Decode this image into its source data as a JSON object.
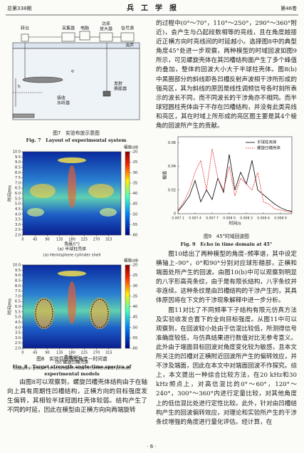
{
  "header": {
    "issue": "总第338期",
    "journal": "兵　工　学　报",
    "volume": "第46卷"
  },
  "figure7": {
    "labels": {
      "turntable": "转台",
      "collector": "采集器",
      "computer": "电脑",
      "amplifier": [
        "功率",
        "放大器"
      ],
      "source": "信号源",
      "pool": "消声",
      "receiver": [
        "接收",
        "水听器"
      ],
      "transmitter": [
        "发射",
        "换能器"
      ],
      "angle": "α",
      "depth": "h"
    },
    "caption_cn": "图7　实验布放示意图",
    "caption_en": "Fig. 7　Layout of experimental system"
  },
  "figure8": {
    "ylabel": "时间/ms",
    "xlabel": "角度/(°)",
    "cbar_label": "幅值/dB",
    "xlim": [
      0,
      360
    ],
    "xticks": [
      0,
      45,
      90,
      135,
      180,
      225,
      270,
      315
    ],
    "ylim": [
      2,
      10
    ],
    "yticks": [
      {
        "value": 2,
        "label": "2.0"
      },
      2.5,
      {
        "value": 3,
        "label": "3.0"
      },
      3.5,
      {
        "value": 4,
        "label": "4.0"
      },
      4.5,
      {
        "value": 5,
        "label": "5.0"
      },
      5.5,
      {
        "value": 6,
        "label": "6.0"
      },
      6.5,
      {
        "value": 7,
        "label": "7.0"
      },
      7.5,
      {
        "value": 8,
        "label": "8.0"
      },
      8.5,
      {
        "value": 9,
        "label": "9.0"
      },
      9.5,
      {
        "value": 10,
        "label": "10.0"
      }
    ],
    "clim": [
      -20,
      -60
    ],
    "cticks": [
      -20,
      -25,
      -30,
      -35,
      -40,
      -45,
      -50,
      -55,
      -60
    ],
    "panels": [
      {
        "caption_cn": "(a) 半球柱壳体",
        "caption_en": "(a) Hemisphere cylinder shell"
      },
      {
        "caption_cn": "(b) 螺旋凹槽壳体",
        "caption_en": "(b) Spiral groove structure with four circumferential periods"
      }
    ],
    "caption_cn": "图8　实验目标强度角度—时间谱",
    "caption_en": [
      "Fig. 8　Target strength angle-time spectra of",
      "experimental models"
    ]
  },
  "figure9": {
    "type": "line",
    "ylabel": "幅值",
    "xlabel": "时间/s",
    "x": [
      0.0071,
      0.0072,
      0.0073,
      0.0074,
      0.0075,
      0.0076,
      0.0077,
      0.0078,
      0.0079,
      0.008,
      0.0081,
      0.0082,
      0.0083,
      0.0084,
      0.0085,
      0.0086,
      0.0087,
      0.0088,
      0.0089,
      0.009,
      0.0091
    ],
    "series": [
      {
        "name": "半球柱壳体",
        "color": "#000000",
        "values": [
          0.002,
          0.008,
          0.015,
          0.028,
          0.01,
          0.02,
          0.012,
          0.03,
          0.018,
          0.05,
          0.02,
          0.035,
          0.025,
          0.045,
          0.02,
          0.016,
          0.012,
          0.008,
          0.005,
          0.003,
          0.002
        ]
      },
      {
        "name": "螺旋凹槽壳体",
        "color": "#e0302a",
        "values": [
          0.003,
          0.01,
          0.02,
          0.035,
          0.045,
          0.02,
          0.055,
          0.03,
          0.02,
          0.04,
          0.015,
          0.03,
          0.025,
          0.02,
          0.035,
          0.01,
          0.008,
          0.004,
          0.003,
          0.002,
          0.001
        ]
      }
    ],
    "xlim": [
      0.0071,
      0.0091
    ],
    "xticks": [
      {
        "value": 0.0071,
        "label": "0.007 1"
      },
      {
        "value": 0.0074,
        "label": "0.007 4"
      },
      {
        "value": 0.0077,
        "label": "0.007 7"
      },
      {
        "value": 0.008,
        "label": "0.008 0"
      },
      {
        "value": 0.0083,
        "label": "0.008 3"
      },
      {
        "value": 0.0086,
        "label": "0.008 6"
      },
      {
        "value": 0.0089,
        "label": "0.008 9"
      }
    ],
    "ylim": [
      0,
      0.065
    ],
    "yticks": [
      0,
      0.02,
      0.04,
      0.06
    ],
    "caption_cn": "图9　45°时域回波图",
    "caption_en": "Fig. 9　Echo in time domain at 45°"
  },
  "body": {
    "left": "由图8可以观察到，螺旋凹槽壳体结构由于在轴向上具有周期性凹槽结构，正横方向的目标强度发生偏转，其相较半球冠圆柱壳体较弱。结构产生了不同的时延，因此在模型由正横方向向两端旋转",
    "right": [
      "的过程中(0°～70°，110°～250°，290°～360°附近)，会产生与凸起段数相等的亮线，且在角度越接近正横方向时亮线间的时延越小。选择图8中的典型角度45°处进一步观察，两种模型的时域回波如图9所示，可见螺旋壳体在其凹槽结构面产生了多个峰值的叠加，整体的回波大小大于半球柱壳体。图8(b)中黑圈部分的斜线即各凹槽反射声波相干涉所形成的强亮区，其为斜线的原因是线性调频信号各时刻所表示的波长不同，而不同波长的干涉角亦不相同。而半球冠圆柱壳体由于不存在凹槽结构，并没有此类亮线和亮区，其在时域上所形成的亮区图主要是其4个棱角的回波所产生的贡献。",
      "图10给出了两种模型的角度–频率谱，其中设定横轴上–90°，0°和90°分别对应球形艏部，正横和端面处所产生的回波。由图10(b)中可以观察到明显的八字形高亮条纹，由于是有限长结构，八字条纹并非连续。这种条纹是由凹槽结构的干涉产生的，其具体原因将在下文的干涉现象解释中进一步分析。",
      "图11对比了不同频率下子结构有限元仿真方法及实验收发合置下的全向目标强度。从图11中可以观察到，在回波较小处由于信混比较低，所测得信号准确度较低，与仿真结果进行数值对比无参考意义。此外由于端面目标回波对角度变化较为敏感，且本文所关注的凹槽对正横附近回波所产生的偏转效应，并不涉及端面，因此在本文中对端面回波不作探究。综上，本文提出一种综合比较方法，在20 kHz和30 kHz频点上，对高信混比的0°～60°，120°～240°，300°～360°内进行定量比较，对其他角度上的低信混比处进行定性比较。此外，针对由凹槽结构产生的回波偏转效应，对理论和实验所产生的干涉条纹增强的角度进行量化评估。经计算，在"
    ]
  },
  "footer": {
    "page": "· 6 ·"
  }
}
